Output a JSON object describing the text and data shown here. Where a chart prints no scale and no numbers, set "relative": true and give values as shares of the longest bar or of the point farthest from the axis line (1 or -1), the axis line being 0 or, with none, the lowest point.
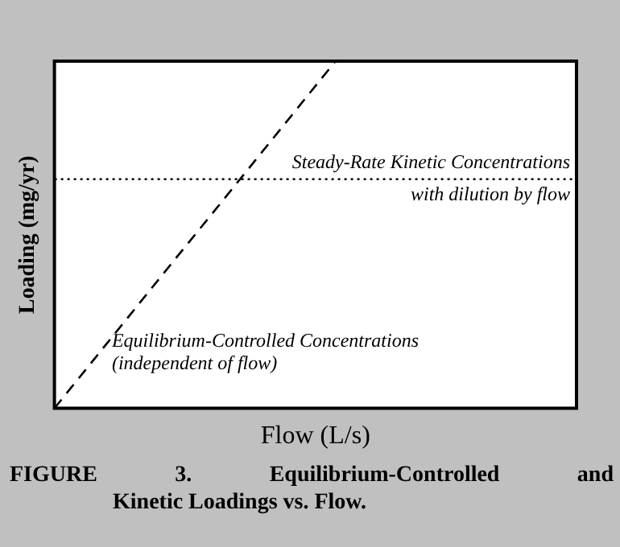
{
  "chart_data": {
    "type": "line",
    "relative": true,
    "xlabel": "Flow (L/s)",
    "ylabel": "Loading (mg/yr)",
    "grid": false,
    "legend": false,
    "marker": "none",
    "categories": [
      null,
      null,
      null,
      null,
      null,
      null,
      null,
      null,
      null,
      null,
      null,
      null,
      null,
      null
    ],
    "series": [
      {
        "color": "#000000",
        "line_style": "dashed",
        "values": [
          0,
          0.143,
          0.286,
          0.429,
          0.571,
          0.714,
          0.857,
          1,
          null,
          null,
          null,
          null,
          null,
          null
        ]
      },
      {
        "color": "#000000",
        "line_style": "dotted",
        "values": [
          0.66,
          0.66,
          0.66,
          0.66,
          0.66,
          0.66,
          0.66,
          0.66,
          0.66,
          0.66,
          0.66,
          0.66,
          0.66,
          0.66
        ]
      }
    ],
    "annotations": [
      {
        "text": "Steady-Rate Kinetic Concentrations\nwith dilution by flow",
        "y": 0.66
      },
      "Equilibrium-Controlled Concentrations\n(independent of flow)",
      "FIGURE 3. Equilibrium-Controlled and Kinetic Loadings vs. Flow."
    ]
  }
}
